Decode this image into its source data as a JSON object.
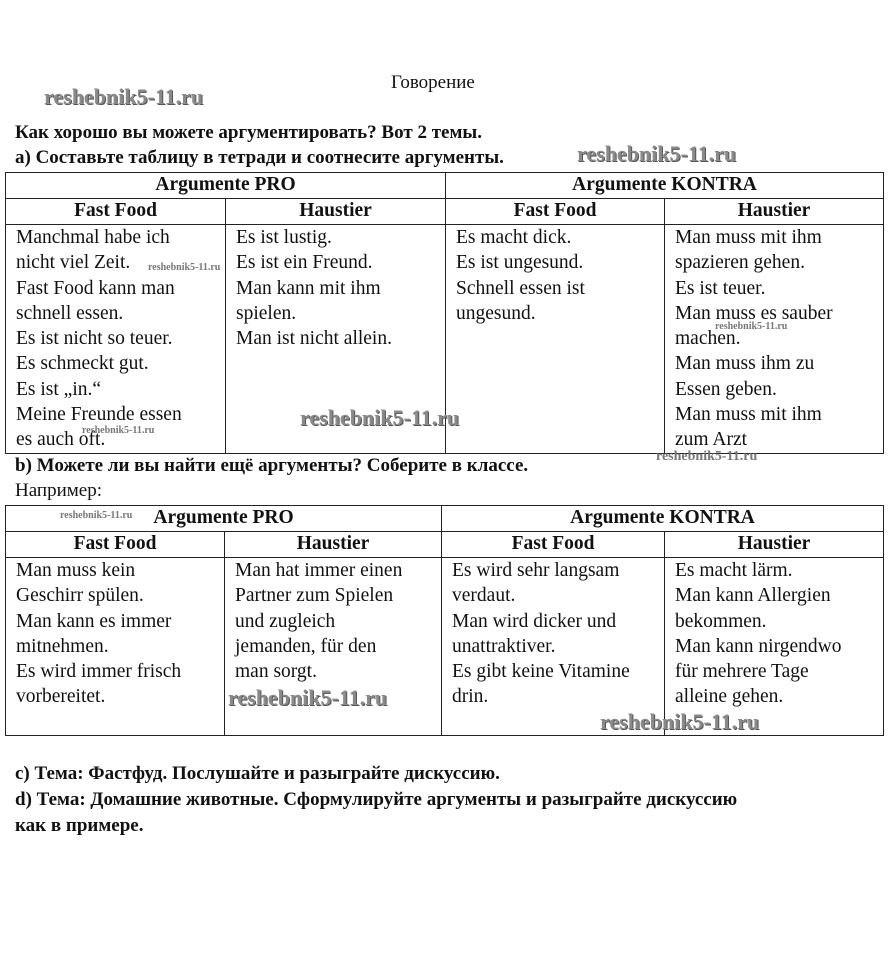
{
  "title": "Говорение",
  "intro": "Как хорошо вы можете аргументировать? Вот 2 темы.",
  "task_a": "a) Составьте таблицу в тетради и соотнесите аргументы.",
  "table1": {
    "groups": [
      "Argumente PRO",
      "Argumente KONTRA"
    ],
    "columns": [
      "Fast Food",
      "Haustier",
      "Fast Food",
      "Haustier"
    ],
    "cells": [
      [
        "Manchmal habe ich",
        "nicht viel Zeit.",
        "Fast Food kann man",
        "schnell essen.",
        "Es ist nicht so teuer.",
        "Es schmeckt gut.",
        "Es ist „in.“",
        "Meine Freunde essen",
        "es auch oft."
      ],
      [
        "Es ist lustig.",
        "Es ist ein Freund.",
        "Man kann mit ihm",
        "spielen.",
        "Man ist nicht allein."
      ],
      [
        "Es macht dick.",
        "Es ist ungesund.",
        "Schnell essen ist",
        "ungesund."
      ],
      [
        "Man muss mit ihm",
        "spazieren gehen.",
        "Es ist teuer.",
        "Man muss es sauber",
        "machen.",
        "Man muss ihm zu",
        "Essen geben.",
        "Man muss mit ihm",
        "zum Arzt"
      ]
    ]
  },
  "task_b": "b) Можете ли вы найти ещё аргументы? Соберите в классе.",
  "example": "Например:",
  "table2": {
    "groups": [
      "Argumente PRO",
      "Argumente KONTRA"
    ],
    "columns": [
      "Fast Food",
      "Haustier",
      "Fast Food",
      "Haustier"
    ],
    "cells": [
      [
        "Man muss kein",
        "Geschirr spülen.",
        "Man kann es immer",
        "mitnehmen.",
        "Es wird immer frisch",
        "vorbereitet."
      ],
      [
        "Man hat immer einen",
        "Partner zum Spielen",
        "und zugleich",
        "jemanden, für den",
        "man sorgt."
      ],
      [
        "Es wird sehr langsam",
        "verdaut.",
        "Man wird dicker und",
        "unattraktiver.",
        "Es gibt keine Vitamine",
        "drin."
      ],
      [
        "Es macht lärm.",
        "Man kann Allergien",
        "bekommen.",
        "Man kann nirgendwo",
        "für mehrere Tage",
        "alleine gehen."
      ]
    ]
  },
  "task_c": "c) Тема: Фастфуд. Послушайте и разыграйте дискуссию.",
  "task_d1": "d) Тема: Домашние животные. Сформулируйте аргументы и разыграйте дискуссию",
  "task_d2": "как в примере.",
  "watermark": "reshebnik5-11.ru"
}
